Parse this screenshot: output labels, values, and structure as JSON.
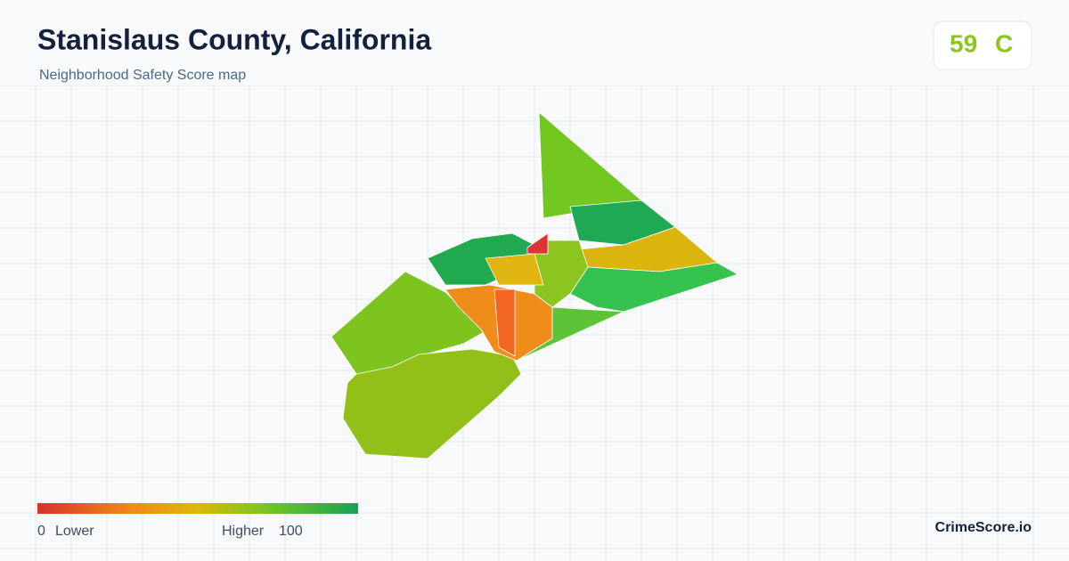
{
  "header": {
    "title": "Stanislaus County, California",
    "subtitle": "Neighborhood Safety Score map"
  },
  "score": {
    "value": 59,
    "grade": "C"
  },
  "legend": {
    "min": 0,
    "min_label": "Lower",
    "max_label": "Higher",
    "max": 100
  },
  "brand": "CrimeScore.io"
}
